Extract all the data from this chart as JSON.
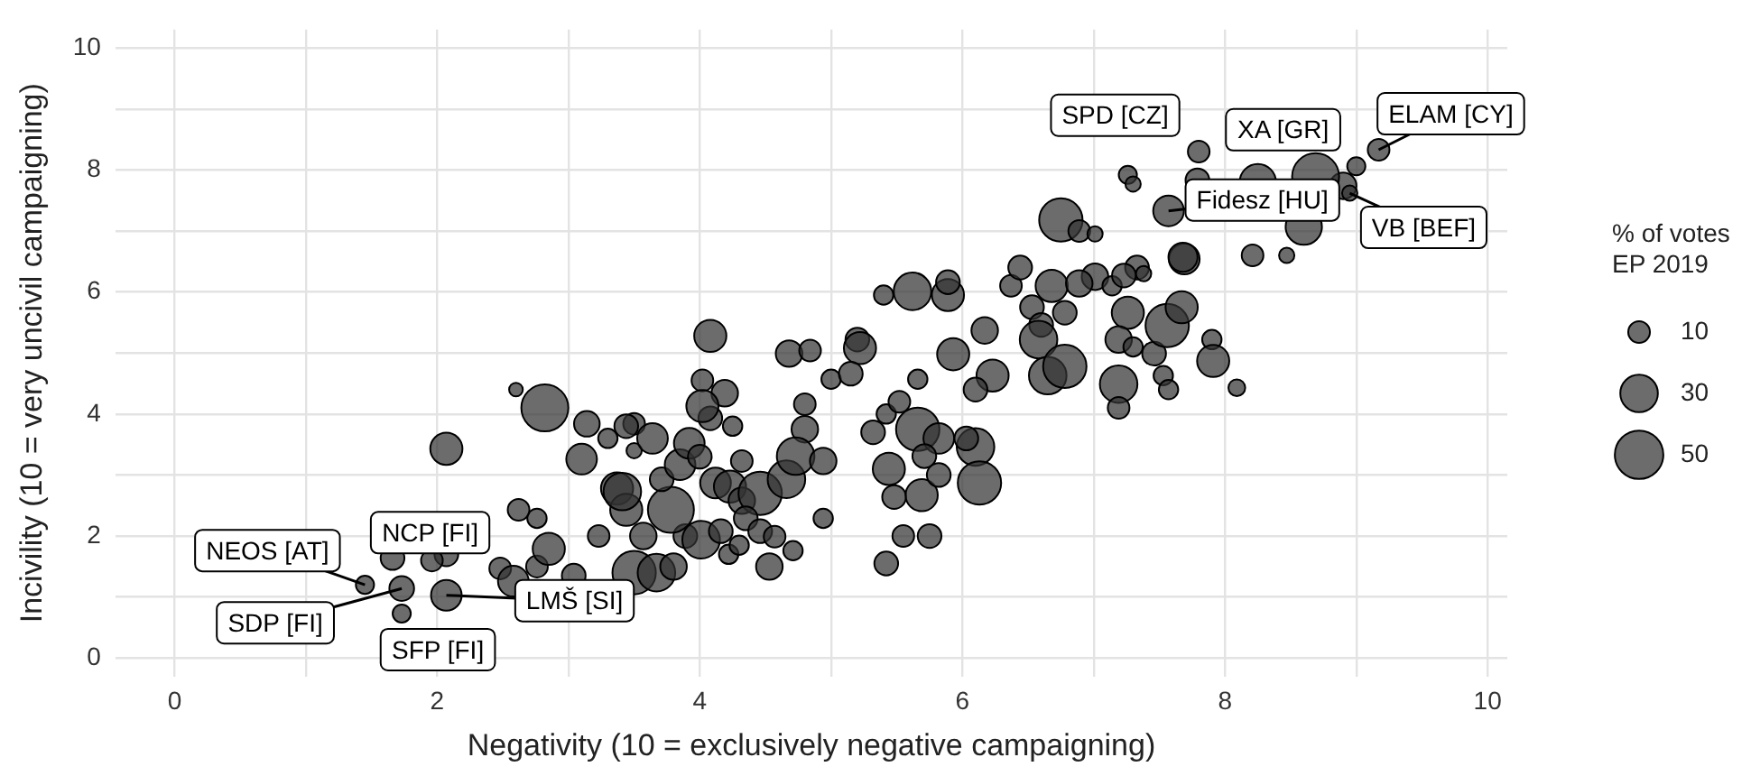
{
  "chart_data": {
    "type": "bubble",
    "xlabel": "Negativity (10 = exclusively negative campaigning)",
    "ylabel": "Incivility (10 = very uncivil campaigning)",
    "legend_title": "% of votes EP 2019",
    "color": "#333333",
    "x": [
      1.45,
      1.73,
      1.73,
      1.66,
      2.07,
      2.07,
      2.07,
      2.82,
      2.6,
      3.14,
      3.5,
      3.1,
      3.5,
      3.37,
      2.48,
      2.58,
      2.76,
      2.85,
      2.76,
      2.62,
      3.04,
      3.23,
      3.44,
      3.41,
      3.57,
      3.5,
      3.67,
      3.8,
      3.89,
      3.78,
      3.71,
      3.85,
      3.92,
      4.0,
      3.64,
      3.44,
      4.08,
      4.08,
      4.02,
      4.19,
      4.02,
      4.25,
      4.32,
      4.12,
      4.23,
      4.32,
      4.46,
      4.66,
      4.35,
      4.46,
      4.57,
      4.71,
      4.53,
      4.22,
      4.3,
      4.01,
      4.16,
      4.94,
      4.8,
      4.73,
      4.94,
      4.8,
      5.0,
      4.68,
      4.84,
      5.2,
      5.22,
      5.15,
      5.32,
      5.42,
      5.52,
      5.44,
      5.48,
      5.69,
      5.66,
      5.82,
      5.71,
      6.1,
      6.13,
      5.82,
      5.55,
      5.42,
      5.75,
      6.03,
      6.23,
      6.1,
      5.93,
      5.66,
      6.17,
      5.4,
      5.62,
      5.89,
      5.89,
      6.37,
      6.53,
      6.6,
      6.78,
      6.58,
      6.65,
      6.44,
      6.68,
      6.78,
      7.01,
      7.14,
      7.26,
      7.19,
      7.3,
      7.19,
      7.19,
      7.46,
      7.53,
      7.57,
      7.56,
      7.67,
      7.33,
      7.69,
      7.9,
      8.09,
      7.91,
      9.17,
      9.0,
      8.9,
      8.95,
      8.69,
      8.25,
      7.8,
      7.79,
      7.26,
      7.3,
      7.57,
      8.6,
      8.21,
      8.47,
      7.68,
      6.75,
      6.89,
      7.01,
      7.23,
      7.38,
      6.89,
      1.96,
      3.3
    ],
    "values": [
      1.2,
      1.14,
      0.73,
      1.64,
      1.7,
      1.03,
      3.43,
      4.1,
      4.4,
      3.84,
      3.84,
      3.26,
      3.4,
      2.78,
      1.47,
      1.26,
      1.5,
      1.79,
      2.29,
      2.43,
      1.35,
      2.0,
      2.43,
      2.73,
      2.0,
      1.4,
      1.4,
      1.5,
      2.0,
      2.43,
      2.93,
      3.17,
      3.52,
      3.3,
      3.6,
      3.8,
      3.93,
      5.28,
      4.55,
      4.34,
      4.13,
      3.8,
      3.23,
      2.87,
      2.81,
      2.58,
      2.7,
      2.93,
      2.29,
      2.08,
      1.99,
      1.76,
      1.5,
      1.7,
      1.85,
      1.94,
      2.08,
      2.29,
      3.75,
      3.31,
      3.23,
      4.16,
      4.57,
      4.99,
      5.04,
      5.22,
      5.08,
      4.66,
      3.7,
      4.0,
      4.2,
      3.1,
      2.64,
      2.67,
      3.75,
      3.6,
      3.31,
      3.46,
      2.87,
      3.0,
      2.0,
      1.55,
      2.0,
      3.6,
      4.63,
      4.4,
      4.98,
      4.57,
      5.37,
      5.95,
      6.01,
      5.95,
      6.16,
      6.1,
      5.75,
      5.46,
      5.66,
      5.22,
      4.63,
      6.4,
      6.1,
      4.78,
      6.25,
      6.1,
      5.66,
      5.22,
      5.1,
      4.49,
      4.1,
      4.99,
      4.63,
      4.4,
      5.45,
      5.75,
      6.4,
      6.54,
      5.22,
      4.43,
      4.87,
      8.33,
      8.06,
      7.74,
      7.62,
      7.89,
      7.8,
      8.3,
      7.83,
      7.92,
      7.77,
      7.33,
      7.07,
      6.6,
      6.6,
      6.57,
      7.18,
      7.0,
      6.95,
      6.27,
      6.3,
      6.14,
      1.6,
      3.6
    ],
    "sizes": [
      7,
      13,
      7,
      12,
      12,
      20,
      22,
      47,
      4,
      14,
      10,
      20,
      5,
      22,
      10,
      20,
      10,
      22,
      8,
      10,
      12,
      10,
      22,
      30,
      15,
      40,
      30,
      15,
      12,
      45,
      12,
      20,
      20,
      12,
      20,
      12,
      12,
      22,
      10,
      15,
      22,
      8,
      10,
      20,
      22,
      15,
      40,
      30,
      12,
      12,
      10,
      8,
      15,
      8,
      8,
      30,
      12,
      8,
      15,
      30,
      15,
      10,
      8,
      15,
      10,
      12,
      22,
      12,
      12,
      8,
      10,
      22,
      12,
      22,
      40,
      20,
      12,
      30,
      40,
      12,
      10,
      12,
      12,
      12,
      22,
      12,
      22,
      8,
      15,
      8,
      30,
      22,
      12,
      10,
      12,
      12,
      12,
      30,
      30,
      12,
      22,
      40,
      15,
      8,
      22,
      15,
      8,
      30,
      10,
      12,
      8,
      8,
      40,
      22,
      12,
      20,
      8,
      6,
      22,
      10,
      7,
      15,
      5,
      47,
      28,
      10,
      12,
      7,
      5,
      20,
      28,
      10,
      5,
      18,
      40,
      10,
      5,
      12,
      5,
      15,
      10,
      8
    ],
    "size_legend": [
      10,
      30,
      50
    ],
    "xlim": [
      -0.45,
      10.15
    ],
    "ylim": [
      -0.3,
      10.3
    ],
    "xticks": [
      0,
      {
        "value": 1,
        "label": null
      },
      2,
      {
        "value": 3,
        "label": null
      },
      4,
      {
        "value": 5,
        "label": null
      },
      6,
      {
        "value": 7,
        "label": null
      },
      8,
      {
        "value": 9,
        "label": null
      },
      10
    ],
    "yticks": [
      0,
      {
        "value": 1,
        "label": null
      },
      2,
      {
        "value": 3,
        "label": null
      },
      4,
      {
        "value": 5,
        "label": null
      },
      6,
      {
        "value": 7,
        "label": null
      },
      8,
      {
        "value": 9,
        "label": null
      },
      10
    ],
    "grid": true,
    "annotations": [
      {
        "text": "NEOS [AT]",
        "x": 1.45,
        "y": 1.2
      },
      {
        "text": "SDP [FI]",
        "x": 1.73,
        "y": 1.14
      },
      {
        "text": "SFP [FI]",
        "x": 1.73,
        "y": 0.73
      },
      {
        "text": "NCP [FI]",
        "x": 2.07,
        "y": 1.7
      },
      {
        "text": "LMŠ [SI]",
        "x": 2.07,
        "y": 1.03
      },
      {
        "text": "SPD [CZ]",
        "x": 7.26,
        "y": 7.92
      },
      {
        "text": "XA [GR]",
        "x": 8.69,
        "y": 7.89
      },
      {
        "text": "ELAM [CY]",
        "x": 9.17,
        "y": 8.33
      },
      {
        "text": "Fidesz [HU]",
        "x": 7.57,
        "y": 7.33
      },
      {
        "text": "VB [BEF]",
        "x": 8.95,
        "y": 7.62
      }
    ]
  }
}
